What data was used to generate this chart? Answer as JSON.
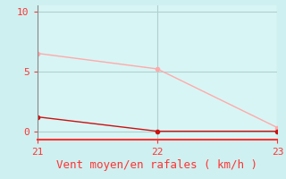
{
  "bg_color": "#cff0f0",
  "plot_bg_color": "#d8f5f5",
  "grid_color": "#b0d0d0",
  "axis_bottom_color": "#ff3333",
  "spine_color": "#888888",
  "line1_color": "#ffaaaa",
  "line2_color": "#cc1111",
  "line1_x": [
    21,
    22,
    23
  ],
  "line1_y": [
    6.5,
    5.2,
    0.3
  ],
  "line2_x": [
    21,
    22,
    23
  ],
  "line2_y": [
    1.2,
    0.0,
    0.0
  ],
  "xlabel": "Vent moyen/en rafales ( km/h )",
  "xlim": [
    21,
    23
  ],
  "ylim": [
    -0.7,
    10.5
  ],
  "xticks": [
    21,
    22,
    23
  ],
  "yticks": [
    0,
    5,
    10
  ],
  "xlabel_color": "#ff3333",
  "tick_color": "#ff3333",
  "marker": "o",
  "markersize": 3,
  "linewidth": 1.0,
  "xlabel_fontsize": 9,
  "tick_fontsize": 8,
  "font_family": "monospace"
}
